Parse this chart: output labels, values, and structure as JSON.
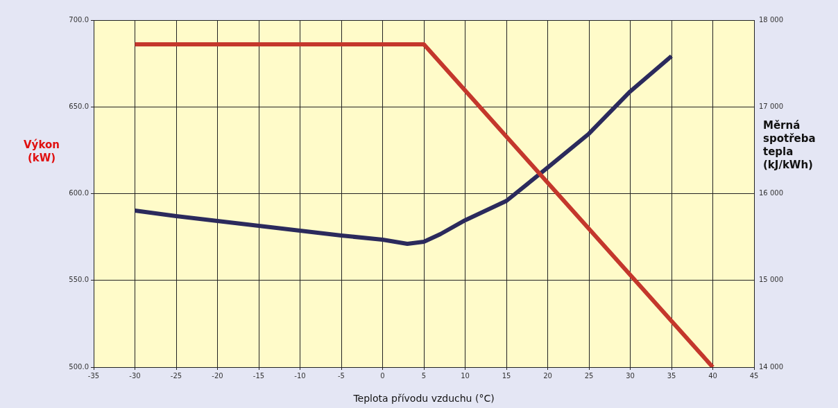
{
  "chart_data": {
    "type": "line",
    "xlabel": "Teplota přívodu vzduchu (°C)",
    "ylabel": "Výkon (kW)",
    "y2label": "Měrná spotřeba tepla (kJ/kWh)",
    "series": [
      {
        "color": "#c4372c",
        "x": [
          -30,
          5,
          40
        ],
        "values": [
          686,
          686,
          500
        ]
      },
      {
        "color": "#2b2a5c",
        "axis": "y2",
        "x": [
          -30,
          -25,
          -20,
          -15,
          -10,
          -5,
          0,
          3,
          5,
          7,
          10,
          15,
          20,
          25,
          30,
          35
        ],
        "values": [
          15804,
          15740,
          15685,
          15629,
          15573,
          15517,
          15469,
          15421,
          15445,
          15533,
          15693,
          15916,
          16300,
          16691,
          17178,
          17585
        ]
      }
    ],
    "xlim": [
      -35,
      45
    ],
    "xticks": [
      -35,
      -30,
      -25,
      -20,
      -15,
      -10,
      -5,
      0,
      5,
      10,
      15,
      20,
      25,
      30,
      35,
      40,
      45
    ],
    "ylim": [
      500,
      700
    ],
    "yticks": [
      {
        "value": 500,
        "label": "500.0"
      },
      {
        "value": 550,
        "label": "550.0"
      },
      {
        "value": 600,
        "label": "600.0"
      },
      {
        "value": 650,
        "label": "650.0"
      },
      {
        "value": 700,
        "label": "700.0"
      }
    ],
    "y2lim": [
      14000,
      18000
    ],
    "y2ticks": [
      {
        "value": 14000,
        "label": "14 000"
      },
      {
        "value": 15000,
        "label": "15 000"
      },
      {
        "value": 16000,
        "label": "16 000"
      },
      {
        "value": 17000,
        "label": "17 000"
      },
      {
        "value": 18000,
        "label": "18 000"
      }
    ],
    "grid": true,
    "legend": false,
    "marker": "none",
    "line_style": "solid"
  }
}
